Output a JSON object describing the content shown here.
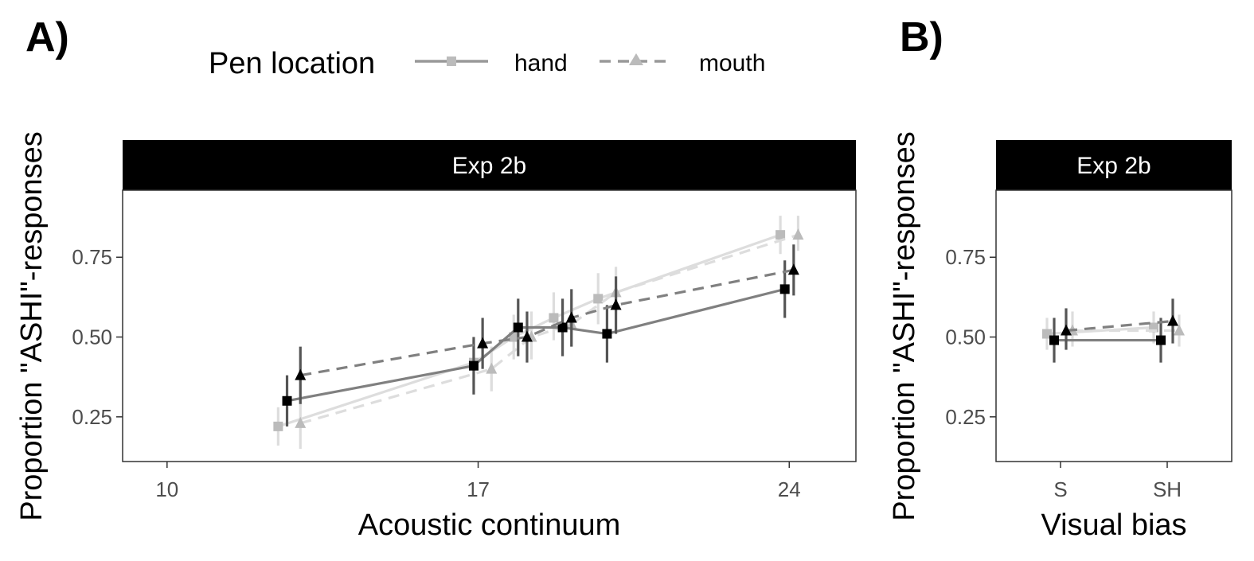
{
  "figure": {
    "panel_a_tag": "A)",
    "panel_b_tag": "B)"
  },
  "legend": {
    "title": "Pen location",
    "items": [
      {
        "label": "hand",
        "shape": "square",
        "linetype": "solid",
        "color": "#999999"
      },
      {
        "label": "mouth",
        "shape": "triangle",
        "linetype": "dashed",
        "color": "#bbbbbb"
      }
    ]
  },
  "chart_data": [
    {
      "type": "line",
      "strip": "Exp 2b",
      "xlabel": "Acoustic continuum",
      "ylabel": "Proportion \"ASHI\"-responses",
      "xlim": [
        9,
        25.5
      ],
      "ylim": [
        0.11,
        0.96
      ],
      "x_ticks": [
        10,
        17,
        24
      ],
      "x_tick_labels": [
        "10",
        "17",
        "24"
      ],
      "y_ticks": [
        0.25,
        0.5,
        0.75
      ],
      "y_tick_labels": [
        "0.25",
        "0.50",
        "0.75"
      ],
      "grid": false,
      "series": [
        {
          "group": "light",
          "shape": "square",
          "linetype": "solid",
          "color": "#dddddd",
          "point_color": "#bbbbbb",
          "points": [
            {
              "x": 12.5,
              "y": 0.22,
              "lo": 0.16,
              "hi": 0.28
            },
            {
              "x": 16.9,
              "y": 0.42,
              "lo": 0.35,
              "hi": 0.49
            },
            {
              "x": 17.8,
              "y": 0.5,
              "lo": 0.43,
              "hi": 0.57
            },
            {
              "x": 18.7,
              "y": 0.56,
              "lo": 0.49,
              "hi": 0.64
            },
            {
              "x": 19.7,
              "y": 0.62,
              "lo": 0.54,
              "hi": 0.7
            },
            {
              "x": 23.8,
              "y": 0.82,
              "lo": 0.76,
              "hi": 0.88
            }
          ]
        },
        {
          "group": "light",
          "shape": "triangle",
          "linetype": "dashed",
          "color": "#dddddd",
          "point_color": "#bbbbbb",
          "points": [
            {
              "x": 13.0,
              "y": 0.23,
              "lo": 0.15,
              "hi": 0.31
            },
            {
              "x": 17.3,
              "y": 0.4,
              "lo": 0.33,
              "hi": 0.47
            },
            {
              "x": 18.2,
              "y": 0.5,
              "lo": 0.43,
              "hi": 0.58
            },
            {
              "x": 19.1,
              "y": 0.54,
              "lo": 0.47,
              "hi": 0.62
            },
            {
              "x": 20.1,
              "y": 0.64,
              "lo": 0.57,
              "hi": 0.72
            },
            {
              "x": 24.2,
              "y": 0.82,
              "lo": 0.77,
              "hi": 0.88
            }
          ]
        },
        {
          "group": "dark",
          "shape": "square",
          "linetype": "solid",
          "color": "#808080",
          "point_color": "#000000",
          "points": [
            {
              "x": 12.7,
              "y": 0.3,
              "lo": 0.22,
              "hi": 0.38
            },
            {
              "x": 16.9,
              "y": 0.41,
              "lo": 0.32,
              "hi": 0.5
            },
            {
              "x": 17.9,
              "y": 0.53,
              "lo": 0.44,
              "hi": 0.62
            },
            {
              "x": 18.9,
              "y": 0.53,
              "lo": 0.44,
              "hi": 0.62
            },
            {
              "x": 19.9,
              "y": 0.51,
              "lo": 0.42,
              "hi": 0.6
            },
            {
              "x": 23.9,
              "y": 0.65,
              "lo": 0.56,
              "hi": 0.74
            }
          ]
        },
        {
          "group": "dark",
          "shape": "triangle",
          "linetype": "dashed",
          "color": "#808080",
          "point_color": "#000000",
          "points": [
            {
              "x": 13.0,
              "y": 0.38,
              "lo": 0.29,
              "hi": 0.47
            },
            {
              "x": 17.1,
              "y": 0.48,
              "lo": 0.4,
              "hi": 0.56
            },
            {
              "x": 18.1,
              "y": 0.5,
              "lo": 0.42,
              "hi": 0.58
            },
            {
              "x": 19.1,
              "y": 0.56,
              "lo": 0.47,
              "hi": 0.65
            },
            {
              "x": 20.1,
              "y": 0.6,
              "lo": 0.51,
              "hi": 0.69
            },
            {
              "x": 24.1,
              "y": 0.71,
              "lo": 0.63,
              "hi": 0.79
            }
          ]
        }
      ]
    },
    {
      "type": "line",
      "strip": "Exp 2b",
      "xlabel": "Visual bias",
      "ylabel": "Proportion \"ASHI\"-responses",
      "categories": [
        "S",
        "SH"
      ],
      "ylim": [
        0.11,
        0.96
      ],
      "y_ticks": [
        0.25,
        0.5,
        0.75
      ],
      "y_tick_labels": [
        "0.25",
        "0.50",
        "0.75"
      ],
      "grid": false,
      "series": [
        {
          "group": "light",
          "shape": "square",
          "linetype": "solid",
          "color": "#dddddd",
          "point_color": "#bbbbbb",
          "points": [
            {
              "x": "S",
              "y": 0.51,
              "lo": 0.46,
              "hi": 0.56
            },
            {
              "x": "SH",
              "y": 0.53,
              "lo": 0.48,
              "hi": 0.58
            }
          ]
        },
        {
          "group": "light",
          "shape": "triangle",
          "linetype": "dashed",
          "color": "#dddddd",
          "point_color": "#bbbbbb",
          "points": [
            {
              "x": "S",
              "y": 0.52,
              "lo": 0.47,
              "hi": 0.58
            },
            {
              "x": "SH",
              "y": 0.52,
              "lo": 0.47,
              "hi": 0.57
            }
          ]
        },
        {
          "group": "dark",
          "shape": "square",
          "linetype": "solid",
          "color": "#808080",
          "point_color": "#000000",
          "points": [
            {
              "x": "S",
              "y": 0.49,
              "lo": 0.42,
              "hi": 0.56
            },
            {
              "x": "SH",
              "y": 0.49,
              "lo": 0.42,
              "hi": 0.56
            }
          ]
        },
        {
          "group": "dark",
          "shape": "triangle",
          "linetype": "dashed",
          "color": "#808080",
          "point_color": "#000000",
          "points": [
            {
              "x": "S",
              "y": 0.52,
              "lo": 0.46,
              "hi": 0.59
            },
            {
              "x": "SH",
              "y": 0.55,
              "lo": 0.48,
              "hi": 0.62
            }
          ]
        }
      ]
    }
  ]
}
